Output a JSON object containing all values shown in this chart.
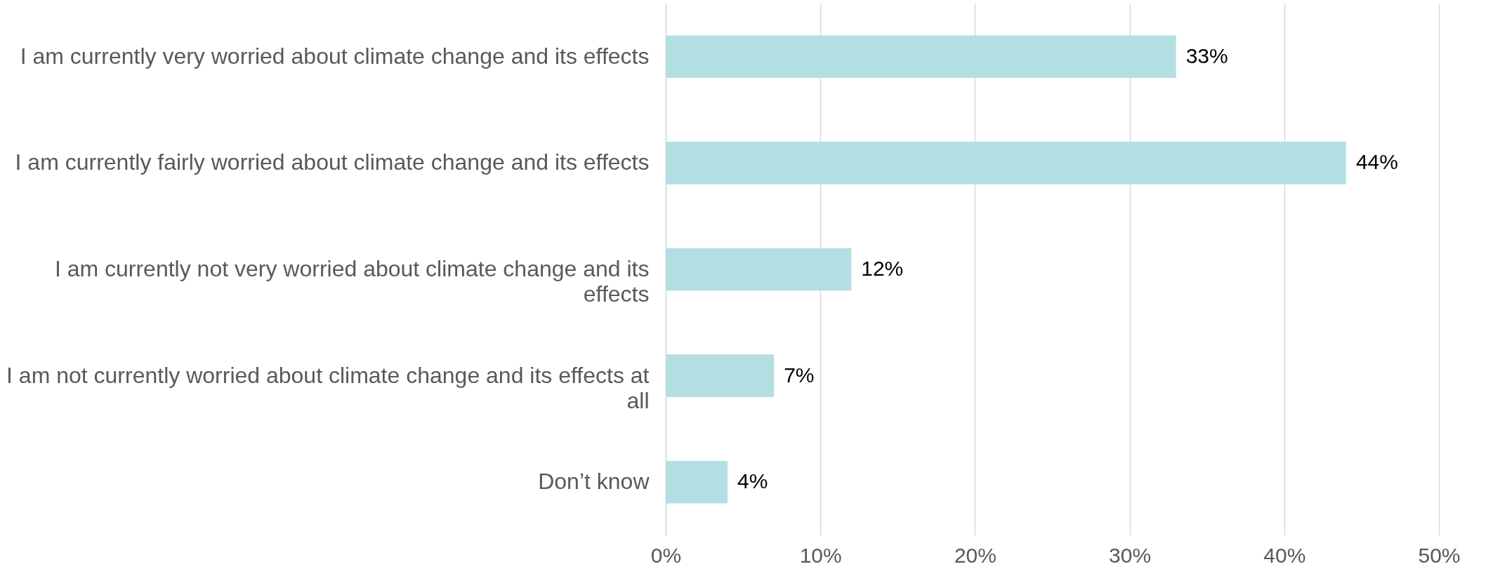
{
  "chart_data": {
    "type": "bar",
    "orientation": "horizontal",
    "categories": [
      "I am currently very worried about climate change and its effects",
      "I am currently fairly worried about climate change and its effects",
      "I am currently not very worried about climate change and its effects",
      "I am not currently worried about climate change and its effects at all",
      "Don’t know"
    ],
    "values": [
      33,
      44,
      12,
      7,
      4
    ],
    "value_labels": [
      "33%",
      "44%",
      "12%",
      "7%",
      "4%"
    ],
    "color": "#b3dfe3",
    "xlim": [
      0,
      50
    ],
    "xticks": [
      {
        "value": 0,
        "label": "0%"
      },
      {
        "value": 10,
        "label": "10%"
      },
      {
        "value": 20,
        "label": "20%"
      },
      {
        "value": 30,
        "label": "30%"
      },
      {
        "value": 40,
        "label": "40%"
      },
      {
        "value": 50,
        "label": "50%"
      }
    ],
    "grid": "x"
  }
}
